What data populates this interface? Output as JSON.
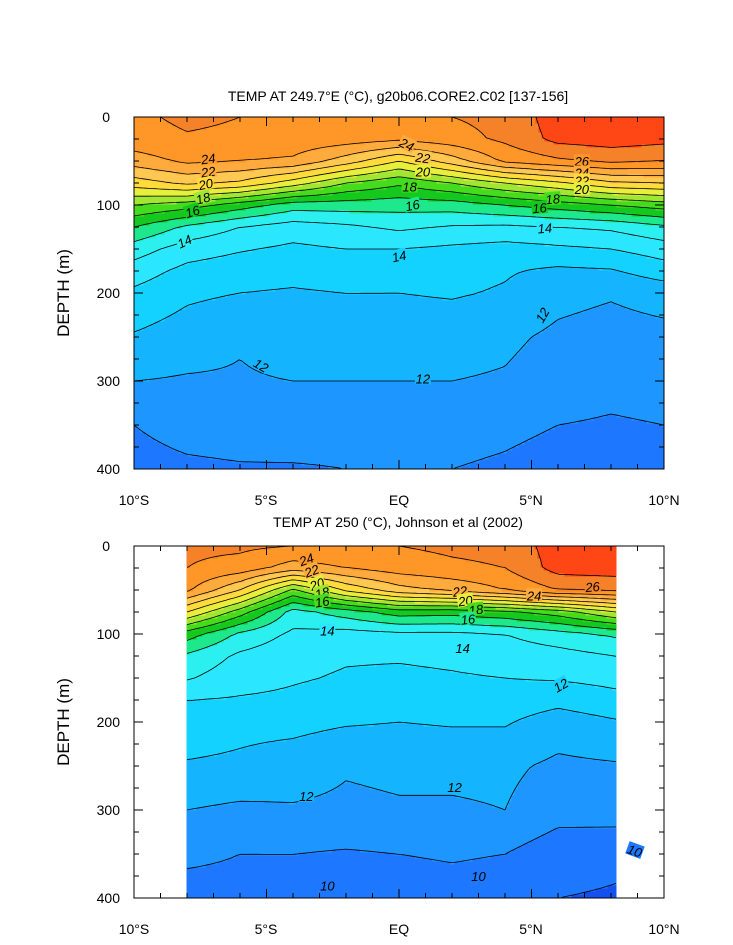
{
  "figure": {
    "background": "#ffffff",
    "levels": [
      10,
      11,
      12,
      13,
      14,
      15,
      16,
      17,
      18,
      19,
      20,
      21,
      22,
      23,
      24,
      25,
      26
    ],
    "colors": [
      "#1450f0",
      "#1e78ff",
      "#1e96ff",
      "#14b4ff",
      "#14d2ff",
      "#2ae6ff",
      "#2cf0f0",
      "#1ee88c",
      "#14c81e",
      "#46dc1e",
      "#a0e632",
      "#e6f03c",
      "#ffdc3c",
      "#ffc850",
      "#ffaa3c",
      "#ff9628",
      "#f58228",
      "#ff4614"
    ]
  },
  "chart_data": [
    {
      "type": "heatmap",
      "title": "TEMP AT 249.7°E (°C), g20b06.CORE2.C02 [137-156]",
      "xlabel": "",
      "ylabel": "DEPTH (m)",
      "xlim": [
        -10,
        10
      ],
      "ylim": [
        0,
        400
      ],
      "y_inverted": true,
      "x_ticks": [
        {
          "v": -10,
          "label": "10°S"
        },
        {
          "v": -5,
          "label": "5°S"
        },
        {
          "v": 0,
          "label": "EQ"
        },
        {
          "v": 5,
          "label": "5°N"
        },
        {
          "v": 10,
          "label": "10°N"
        }
      ],
      "y_ticks": [
        {
          "v": 0,
          "label": "0"
        },
        {
          "v": 100,
          "label": "100"
        },
        {
          "v": 200,
          "label": "200"
        },
        {
          "v": 300,
          "label": "300"
        },
        {
          "v": 400,
          "label": "400"
        }
      ],
      "data_xrange": [
        -10,
        10
      ],
      "x": [
        -10,
        -8,
        -6,
        -4,
        -2,
        0,
        2,
        4,
        6,
        8,
        10
      ],
      "depths": [
        0,
        25,
        50,
        75,
        100,
        125,
        150,
        175,
        200,
        250,
        300,
        350,
        400
      ],
      "values": [
        [
          24.8,
          25.2,
          25.0,
          24.9,
          24.8,
          24.8,
          25.0,
          25.3,
          26.5,
          26.5,
          26.5
        ],
        [
          24.6,
          24.9,
          24.8,
          24.7,
          24.5,
          24.2,
          24.6,
          25.2,
          26.3,
          26.5,
          26.3
        ],
        [
          23.5,
          24.2,
          24.0,
          23.8,
          22.5,
          21.0,
          22.5,
          24.2,
          24.8,
          25.2,
          25.0
        ],
        [
          21.5,
          22.2,
          21.8,
          20.5,
          19.0,
          18.2,
          19.0,
          20.0,
          20.8,
          21.8,
          22.0
        ],
        [
          19.0,
          18.5,
          17.5,
          16.5,
          16.5,
          16.4,
          16.5,
          17.0,
          17.5,
          18.0,
          18.5
        ],
        [
          17.0,
          15.8,
          15.0,
          14.5,
          14.8,
          15.2,
          14.9,
          14.8,
          15.0,
          15.2,
          15.8
        ],
        [
          15.5,
          14.5,
          14.1,
          13.8,
          14.0,
          14.0,
          13.8,
          13.6,
          13.8,
          14.0,
          14.5
        ],
        [
          14.5,
          13.7,
          13.4,
          13.3,
          13.5,
          13.4,
          13.3,
          13.1,
          12.8,
          12.9,
          13.5
        ],
        [
          13.8,
          13.2,
          13.0,
          12.9,
          13.0,
          13.0,
          13.1,
          12.9,
          12.3,
          12.1,
          12.4
        ],
        [
          12.9,
          12.5,
          12.1,
          12.5,
          12.5,
          12.4,
          12.4,
          12.2,
          11.8,
          11.6,
          11.7
        ],
        [
          12.0,
          11.9,
          11.9,
          12.0,
          12.0,
          12.0,
          12.0,
          11.9,
          11.5,
          11.3,
          11.4
        ],
        [
          11.0,
          11.4,
          11.5,
          11.6,
          11.5,
          11.5,
          11.5,
          11.3,
          11.0,
          10.9,
          11.0
        ],
        [
          10.6,
          10.8,
          10.9,
          10.9,
          11.0,
          11.0,
          11.0,
          10.8,
          10.5,
          10.5,
          10.6
        ]
      ],
      "labels": [
        {
          "text": "24",
          "x": -7.2,
          "y": 47,
          "rot": -8
        },
        {
          "text": "22",
          "x": -7.2,
          "y": 62,
          "rot": -8
        },
        {
          "text": "20",
          "x": -7.3,
          "y": 76,
          "rot": -12
        },
        {
          "text": "18",
          "x": -7.4,
          "y": 92,
          "rot": -15
        },
        {
          "text": "16",
          "x": -7.8,
          "y": 107,
          "rot": -18
        },
        {
          "text": "14",
          "x": -8.1,
          "y": 141,
          "rot": -25
        },
        {
          "text": "24",
          "x": 0.3,
          "y": 31,
          "rot": 25
        },
        {
          "text": "22",
          "x": 0.9,
          "y": 46,
          "rot": 8
        },
        {
          "text": "20",
          "x": 0.9,
          "y": 62,
          "rot": 0
        },
        {
          "text": "18",
          "x": 0.4,
          "y": 79,
          "rot": 0
        },
        {
          "text": "16",
          "x": 0.5,
          "y": 100,
          "rot": -12
        },
        {
          "text": "14",
          "x": 0.0,
          "y": 158,
          "rot": -12
        },
        {
          "text": "26",
          "x": 6.9,
          "y": 50,
          "rot": 0
        },
        {
          "text": "24",
          "x": 6.9,
          "y": 63,
          "rot": 0
        },
        {
          "text": "22",
          "x": 6.9,
          "y": 72,
          "rot": 0
        },
        {
          "text": "20",
          "x": 6.9,
          "y": 82,
          "rot": 0
        },
        {
          "text": "18",
          "x": 5.8,
          "y": 93,
          "rot": -5
        },
        {
          "text": "16",
          "x": 5.3,
          "y": 103,
          "rot": -5
        },
        {
          "text": "14",
          "x": 5.5,
          "y": 126,
          "rot": -5
        },
        {
          "text": "12",
          "x": 5.4,
          "y": 225,
          "rot": -60
        },
        {
          "text": "12",
          "x": -5.2,
          "y": 282,
          "rot": 30
        },
        {
          "text": "12",
          "x": 0.9,
          "y": 297,
          "rot": 0
        }
      ]
    },
    {
      "type": "heatmap",
      "title": "TEMP AT 250 (°C), Johnson et al (2002)",
      "xlabel": "",
      "ylabel": "DEPTH (m)",
      "xlim": [
        -10,
        10
      ],
      "ylim": [
        0,
        400
      ],
      "y_inverted": true,
      "x_ticks": [
        {
          "v": -10,
          "label": "10°S"
        },
        {
          "v": -5,
          "label": "5°S"
        },
        {
          "v": 0,
          "label": "EQ"
        },
        {
          "v": 5,
          "label": "5°N"
        },
        {
          "v": 10,
          "label": "10°N"
        }
      ],
      "y_ticks": [
        {
          "v": 0,
          "label": "0"
        },
        {
          "v": 100,
          "label": "100"
        },
        {
          "v": 200,
          "label": "200"
        },
        {
          "v": 300,
          "label": "300"
        },
        {
          "v": 400,
          "label": "400"
        }
      ],
      "data_xrange": [
        -8,
        8.2
      ],
      "x": [
        -8,
        -6,
        -4,
        -2,
        0,
        2,
        4,
        6,
        8.2
      ],
      "depths": [
        0,
        25,
        50,
        75,
        100,
        125,
        150,
        175,
        200,
        250,
        300,
        350,
        400
      ],
      "values": [
        [
          25.2,
          25.2,
          25.0,
          24.9,
          25.0,
          25.2,
          25.3,
          26.5,
          26.6
        ],
        [
          25.0,
          24.6,
          23.5,
          24.0,
          24.5,
          24.8,
          25.0,
          26.4,
          26.5
        ],
        [
          24.2,
          22.0,
          18.8,
          21.2,
          22.6,
          23.2,
          24.0,
          25.0,
          25.2
        ],
        [
          21.0,
          18.5,
          15.6,
          16.5,
          17.5,
          17.4,
          17.8,
          18.5,
          20.0
        ],
        [
          17.5,
          15.8,
          14.8,
          14.6,
          14.8,
          14.8,
          15.0,
          15.6,
          16.2
        ],
        [
          15.8,
          14.8,
          14.3,
          14.1,
          14.1,
          14.2,
          14.4,
          14.6,
          15.0
        ],
        [
          15.1,
          14.4,
          14.1,
          13.9,
          13.8,
          13.9,
          14.0,
          14.1,
          14.3
        ],
        [
          14.0,
          13.9,
          13.8,
          13.6,
          13.5,
          13.5,
          13.6,
          13.3,
          13.7
        ],
        [
          13.6,
          13.3,
          13.3,
          13.1,
          13.0,
          13.1,
          13.1,
          12.5,
          12.9
        ],
        [
          12.9,
          12.8,
          12.5,
          12.1,
          12.2,
          12.2,
          12.2,
          11.8,
          11.9
        ],
        [
          12.0,
          11.8,
          11.9,
          11.8,
          11.9,
          11.9,
          12.0,
          11.4,
          11.5
        ],
        [
          11.3,
          11.0,
          11.0,
          10.9,
          11.0,
          11.1,
          11.0,
          10.4,
          10.2
        ],
        [
          10.4,
          10.5,
          10.6,
          10.5,
          10.5,
          10.6,
          10.5,
          10.0,
          9.9
        ]
      ],
      "labels": [
        {
          "text": "24",
          "x": -3.5,
          "y": 15,
          "rot": -20
        },
        {
          "text": "22",
          "x": -3.3,
          "y": 28,
          "rot": -20
        },
        {
          "text": "20",
          "x": -3.1,
          "y": 43,
          "rot": -20
        },
        {
          "text": "18",
          "x": -2.9,
          "y": 53,
          "rot": -15
        },
        {
          "text": "16",
          "x": -2.9,
          "y": 63,
          "rot": -10
        },
        {
          "text": "14",
          "x": -2.7,
          "y": 96,
          "rot": 0
        },
        {
          "text": "22",
          "x": 2.3,
          "y": 51,
          "rot": -8
        },
        {
          "text": "20",
          "x": 2.5,
          "y": 62,
          "rot": -8
        },
        {
          "text": "18",
          "x": 2.9,
          "y": 72,
          "rot": -8
        },
        {
          "text": "16",
          "x": 2.6,
          "y": 83,
          "rot": -6
        },
        {
          "text": "14",
          "x": 2.4,
          "y": 116,
          "rot": 0
        },
        {
          "text": "24",
          "x": 5.1,
          "y": 56,
          "rot": 0
        },
        {
          "text": "26",
          "x": 7.3,
          "y": 46,
          "rot": -5
        },
        {
          "text": "12",
          "x": 6.1,
          "y": 158,
          "rot": -30
        },
        {
          "text": "12",
          "x": -3.5,
          "y": 284,
          "rot": 0
        },
        {
          "text": "12",
          "x": 2.1,
          "y": 274,
          "rot": 0
        },
        {
          "text": "10",
          "x": -2.7,
          "y": 386,
          "rot": 0
        },
        {
          "text": "10",
          "x": 3.0,
          "y": 375,
          "rot": 0
        },
        {
          "text": "10",
          "x": 8.9,
          "y": 346,
          "rot": 20
        }
      ]
    }
  ]
}
